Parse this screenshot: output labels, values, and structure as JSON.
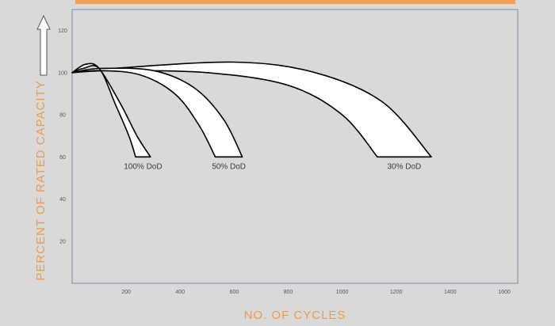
{
  "chart_data": {
    "type": "area",
    "xlabel": "NO. OF CYCLES",
    "ylabel": "PERCENT OF RATED CAPACITY",
    "xlim": [
      0,
      1650
    ],
    "ylim": [
      0,
      130
    ],
    "x_ticks": [
      200,
      400,
      600,
      800,
      1000,
      1200,
      1400,
      1600
    ],
    "y_ticks": [
      20,
      40,
      60,
      80,
      100,
      120
    ],
    "grid": false,
    "series": [
      {
        "name": "100% DoD",
        "upper": [
          [
            0,
            100
          ],
          [
            50,
            104
          ],
          [
            100,
            102
          ],
          [
            180,
            85
          ],
          [
            240,
            70
          ],
          [
            290,
            60
          ]
        ],
        "lower": [
          [
            0,
            100
          ],
          [
            40,
            102
          ],
          [
            100,
            102
          ],
          [
            160,
            85
          ],
          [
            210,
            70
          ],
          [
            235,
            60
          ]
        ]
      },
      {
        "name": "50% DoD",
        "upper": [
          [
            0,
            100
          ],
          [
            100,
            102
          ],
          [
            300,
            101
          ],
          [
            450,
            93
          ],
          [
            560,
            78
          ],
          [
            630,
            60
          ]
        ],
        "lower": [
          [
            0,
            100
          ],
          [
            100,
            101
          ],
          [
            250,
            99
          ],
          [
            380,
            90
          ],
          [
            470,
            75
          ],
          [
            530,
            60
          ]
        ]
      },
      {
        "name": "30% DoD",
        "upper": [
          [
            0,
            100
          ],
          [
            150,
            102
          ],
          [
            600,
            105
          ],
          [
            900,
            100
          ],
          [
            1150,
            86
          ],
          [
            1330,
            60
          ]
        ],
        "lower": [
          [
            0,
            100
          ],
          [
            150,
            101
          ],
          [
            500,
            100
          ],
          [
            800,
            94
          ],
          [
            1000,
            80
          ],
          [
            1130,
            60
          ]
        ]
      }
    ],
    "band_labels": [
      "100%  DoD",
      "50%  DoD",
      "30%  DoD"
    ],
    "colors": {
      "background": "#d9d9d9",
      "band_fill": "#ffffff",
      "band_stroke": "#000000",
      "axis_title": "#ee9a4d",
      "top_bar": "#f0a050",
      "plot_border": "#7b8c9c"
    }
  }
}
